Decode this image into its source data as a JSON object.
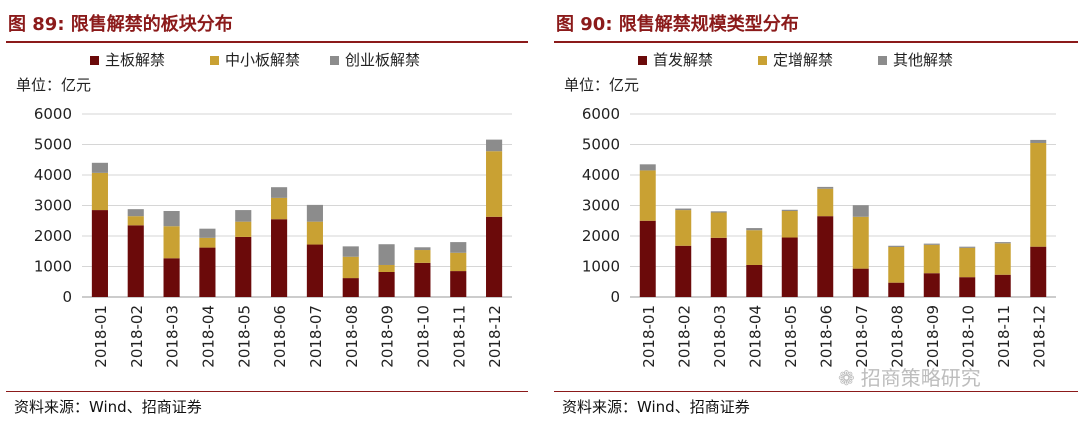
{
  "left": {
    "title": "图 89:  限售解禁的板块分布",
    "source": "资料来源：Wind、招商证券",
    "chart_data": {
      "type": "bar",
      "stacked": true,
      "unit_label": "单位：亿元",
      "categories": [
        "2018-01",
        "2018-02",
        "2018-03",
        "2018-04",
        "2018-05",
        "2018-06",
        "2018-07",
        "2018-08",
        "2018-09",
        "2018-10",
        "2018-11",
        "2018-12"
      ],
      "series": [
        {
          "name": "主板解禁",
          "color": "#6B0A0A",
          "values": [
            2850,
            2350,
            1270,
            1620,
            1970,
            2550,
            1720,
            620,
            820,
            1120,
            850,
            2630
          ]
        },
        {
          "name": "中小板解禁",
          "color": "#C9A133",
          "values": [
            1220,
            300,
            1050,
            320,
            500,
            700,
            750,
            700,
            230,
            420,
            600,
            2150
          ]
        },
        {
          "name": "创业板解禁",
          "color": "#8C8C8C",
          "values": [
            330,
            230,
            500,
            300,
            380,
            350,
            550,
            340,
            680,
            90,
            350,
            380
          ]
        }
      ],
      "ylim": [
        0,
        6000
      ],
      "yticks": [
        0,
        1000,
        2000,
        3000,
        4000,
        5000,
        6000
      ],
      "grid": true,
      "legend": "top"
    }
  },
  "right": {
    "title": "图 90:  限售解禁规模类型分布",
    "source": "资料来源：Wind、招商证券",
    "chart_data": {
      "type": "bar",
      "stacked": true,
      "unit_label": "单位：亿元",
      "categories": [
        "2018-01",
        "2018-02",
        "2018-03",
        "2018-04",
        "2018-05",
        "2018-06",
        "2018-07",
        "2018-08",
        "2018-09",
        "2018-10",
        "2018-11",
        "2018-12"
      ],
      "series": [
        {
          "name": "首发解禁",
          "color": "#6B0A0A",
          "values": [
            2500,
            1680,
            1940,
            1050,
            1950,
            2650,
            930,
            470,
            780,
            650,
            730,
            1650
          ]
        },
        {
          "name": "定增解禁",
          "color": "#C9A133",
          "values": [
            1650,
            1170,
            830,
            1140,
            870,
            900,
            1700,
            1170,
            930,
            960,
            1030,
            3400
          ]
        },
        {
          "name": "其他解禁",
          "color": "#8C8C8C",
          "values": [
            200,
            50,
            40,
            70,
            40,
            60,
            380,
            40,
            40,
            40,
            40,
            100
          ]
        }
      ],
      "ylim": [
        0,
        6000
      ],
      "yticks": [
        0,
        1000,
        2000,
        3000,
        4000,
        5000,
        6000
      ],
      "grid": true,
      "legend": "top"
    }
  },
  "watermark": {
    "icon": "wechat-icon",
    "glyph": "❁",
    "text": "招商策略研究"
  }
}
